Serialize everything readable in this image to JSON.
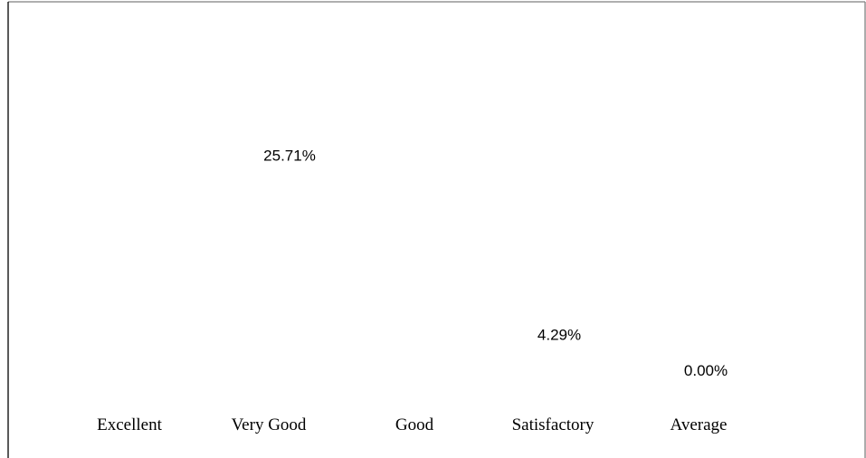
{
  "chart_data": {
    "type": "bar",
    "categories": [
      "Excellent",
      "Very Good",
      "Good",
      "Satisfactory",
      "Average"
    ],
    "values": [
      null,
      25.71,
      null,
      4.29,
      0.0
    ],
    "data_labels": [
      "",
      "25.71%",
      "",
      "4.29%",
      "0.00%"
    ],
    "title": "",
    "xlabel": "",
    "ylabel": "",
    "grid": false,
    "legend": "none"
  }
}
